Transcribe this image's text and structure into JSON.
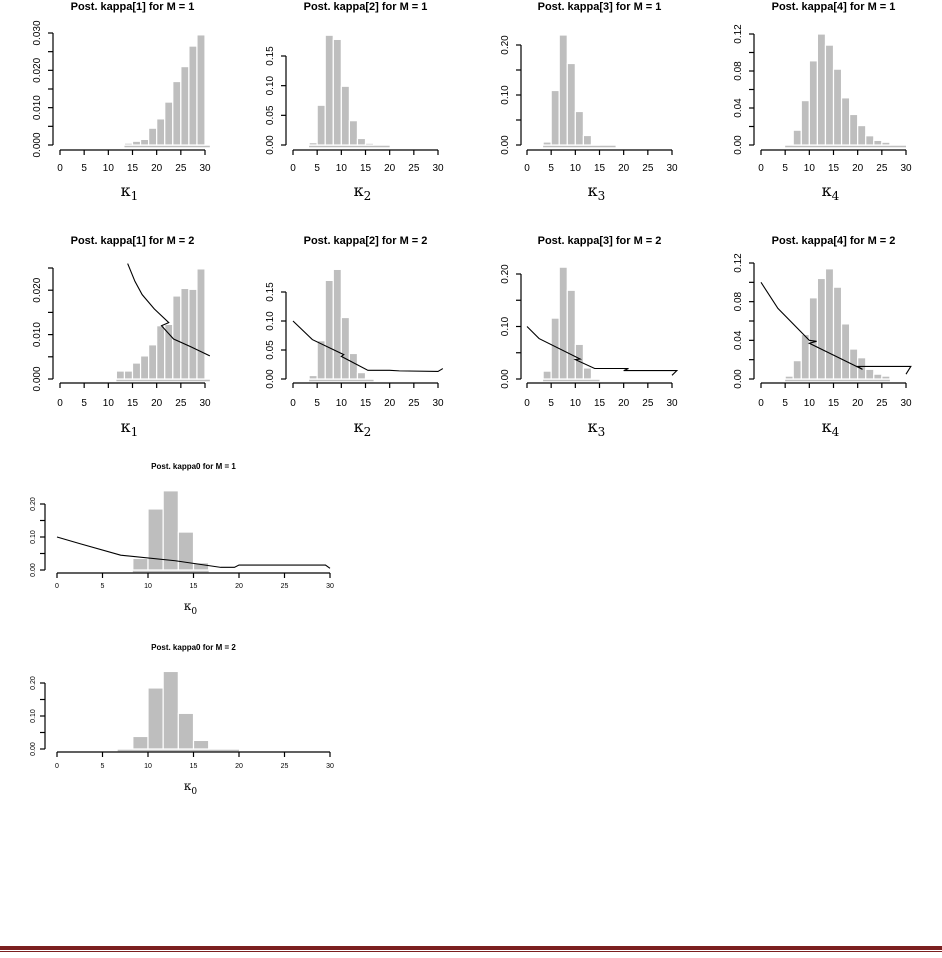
{
  "chart_data": [
    {
      "type": "bar",
      "title": "Post. kappa[1] for M = 1",
      "xlabel": "κ",
      "xlabel_sub": "1",
      "xlim": [
        0,
        30
      ],
      "ylim": [
        0,
        0.03
      ],
      "xticks": [
        "0",
        "5",
        "10",
        "15",
        "20",
        "25",
        "30"
      ],
      "yticks": [
        0,
        0.005,
        0.01,
        0.015,
        0.02,
        0.025,
        0.03
      ],
      "ytick_labels": [
        "0.000",
        "",
        "0.010",
        "",
        "0.020",
        "",
        "0.030"
      ],
      "bin_start": 13.333,
      "bin_width": 1.667,
      "values": [
        0.0005,
        0.001,
        0.0015,
        0.0045,
        0.007,
        0.0115,
        0.017,
        0.021,
        0.0265,
        0.0295
      ],
      "support": [
        13.333,
        31
      ],
      "prior": []
    },
    {
      "type": "bar",
      "title": "Post. kappa[2] for M = 1",
      "xlabel": "κ",
      "xlabel_sub": "2",
      "xlim": [
        0,
        30
      ],
      "ylim": [
        0,
        0.15
      ],
      "xticks": [
        "0",
        "5",
        "10",
        "15",
        "20",
        "25",
        "30"
      ],
      "yticks": [
        0,
        0.05,
        0.1,
        0.15
      ],
      "ytick_labels": [
        "0.00",
        "0.05",
        "0.10",
        "0.15"
      ],
      "bin_start": 3.333,
      "bin_width": 1.667,
      "values": [
        0.004,
        0.067,
        0.185,
        0.178,
        0.099,
        0.041,
        0.011,
        0.003
      ],
      "support": [
        3.333,
        20
      ],
      "prior": []
    },
    {
      "type": "bar",
      "title": "Post. kappa[3] for M = 1",
      "xlabel": "κ",
      "xlabel_sub": "3",
      "xlim": [
        0,
        30
      ],
      "ylim": [
        0,
        0.2
      ],
      "xticks": [
        "0",
        "5",
        "10",
        "15",
        "20",
        "25",
        "30"
      ],
      "yticks": [
        0,
        0.05,
        0.1,
        0.15,
        0.2
      ],
      "ytick_labels": [
        "0.00",
        "",
        "0.10",
        "",
        "0.20"
      ],
      "bin_start": 3.333,
      "bin_width": 1.667,
      "values": [
        0.006,
        0.109,
        0.22,
        0.163,
        0.067,
        0.019,
        0.002
      ],
      "support": [
        3.333,
        18.333
      ],
      "prior": []
    },
    {
      "type": "bar",
      "title": "Post. kappa[4] for M = 1",
      "xlabel": "κ",
      "xlabel_sub": "4",
      "xlim": [
        0,
        30
      ],
      "ylim": [
        0,
        0.12
      ],
      "xticks": [
        "0",
        "5",
        "10",
        "15",
        "20",
        "25",
        "30"
      ],
      "yticks": [
        0,
        0.02,
        0.04,
        0.06,
        0.08,
        0.1,
        0.12
      ],
      "ytick_labels": [
        "0.00",
        "",
        "0.04",
        "",
        "0.08",
        "",
        "0.12"
      ],
      "bin_start": 6.667,
      "bin_width": 1.667,
      "values": [
        0.016,
        0.048,
        0.091,
        0.12,
        0.108,
        0.082,
        0.051,
        0.033,
        0.021,
        0.01,
        0.005,
        0.003
      ],
      "support": [
        5,
        30
      ],
      "prior": []
    },
    {
      "type": "bar",
      "title": "Post. kappa[1] for M = 2",
      "xlabel": "κ",
      "xlabel_sub": "1",
      "xlim": [
        0,
        30
      ],
      "ylim": [
        0,
        0.025
      ],
      "xticks": [
        "0",
        "5",
        "10",
        "15",
        "20",
        "25",
        "30"
      ],
      "yticks": [
        0,
        0.005,
        0.01,
        0.015,
        0.02,
        0.025
      ],
      "ytick_labels": [
        "0.000",
        "",
        "0.010",
        "",
        "0.020",
        ""
      ],
      "bin_start": 11.667,
      "bin_width": 1.667,
      "values": [
        0.0018,
        0.0018,
        0.0036,
        0.0052,
        0.0077,
        0.012,
        0.0123,
        0.0187,
        0.0204,
        0.0202,
        0.0248
      ],
      "support": [
        11.667,
        31
      ],
      "prior": [
        [
          14,
          0.026
        ],
        [
          15.5,
          0.022
        ],
        [
          17,
          0.019
        ],
        [
          19.5,
          0.0158
        ],
        [
          22.5,
          0.0127
        ],
        [
          21,
          0.012
        ],
        [
          23.5,
          0.009
        ],
        [
          27,
          0.0073
        ],
        [
          31,
          0.0052
        ]
      ]
    },
    {
      "type": "bar",
      "title": "Post. kappa[2] for M = 2",
      "xlabel": "κ",
      "xlabel_sub": "2",
      "xlim": [
        0,
        30
      ],
      "ylim": [
        0,
        0.15
      ],
      "xticks": [
        "0",
        "5",
        "10",
        "15",
        "20",
        "25",
        "30"
      ],
      "yticks": [
        0,
        0.05,
        0.1,
        0.15
      ],
      "ytick_labels": [
        "0.00",
        "0.05",
        "0.10",
        "0.15"
      ],
      "bin_start": 3.333,
      "bin_width": 1.667,
      "values": [
        0.006,
        0.066,
        0.17,
        0.189,
        0.106,
        0.044,
        0.011,
        0.002
      ],
      "support": [
        3.333,
        16.667
      ],
      "prior": [
        [
          0,
          0.1
        ],
        [
          4,
          0.068
        ],
        [
          10.5,
          0.042
        ],
        [
          10,
          0.039
        ],
        [
          15.5,
          0.015
        ],
        [
          20,
          0.015
        ],
        [
          22,
          0.014
        ],
        [
          30,
          0.013
        ],
        [
          31,
          0.018
        ]
      ]
    },
    {
      "type": "bar",
      "title": "Post. kappa[3] for M = 2",
      "xlabel": "κ",
      "xlabel_sub": "3",
      "xlim": [
        0,
        30
      ],
      "ylim": [
        0,
        0.2
      ],
      "xticks": [
        "0",
        "5",
        "10",
        "15",
        "20",
        "25",
        "30"
      ],
      "yticks": [
        0,
        0.05,
        0.1,
        0.15,
        0.2
      ],
      "ytick_labels": [
        "0.00",
        "",
        "0.10",
        "",
        "0.20"
      ],
      "bin_start": 3.333,
      "bin_width": 1.667,
      "values": [
        0.015,
        0.116,
        0.213,
        0.169,
        0.066,
        0.021,
        0.002
      ],
      "support": [
        3.333,
        15
      ],
      "prior": [
        [
          0,
          0.1
        ],
        [
          2.5,
          0.077
        ],
        [
          11,
          0.038
        ],
        [
          10,
          0.037
        ],
        [
          14,
          0.02
        ],
        [
          21,
          0.02
        ],
        [
          20,
          0.016
        ],
        [
          31,
          0.016
        ],
        [
          30,
          0.007
        ]
      ]
    },
    {
      "type": "bar",
      "title": "Post. kappa[4] for M = 2",
      "xlabel": "κ",
      "xlabel_sub": "4",
      "xlim": [
        0,
        30
      ],
      "ylim": [
        0,
        0.12
      ],
      "xticks": [
        "0",
        "5",
        "10",
        "15",
        "20",
        "25",
        "30"
      ],
      "yticks": [
        0,
        0.02,
        0.04,
        0.06,
        0.08,
        0.1,
        0.12
      ],
      "ytick_labels": [
        "0.00",
        "",
        "0.04",
        "",
        "0.08",
        "",
        "0.12"
      ],
      "bin_start": 5,
      "bin_width": 1.667,
      "values": [
        0.003,
        0.019,
        0.046,
        0.084,
        0.104,
        0.114,
        0.095,
        0.057,
        0.031,
        0.022,
        0.01,
        0.005,
        0.003
      ],
      "support": [
        5,
        26.667
      ],
      "prior": [
        [
          0,
          0.1
        ],
        [
          3.5,
          0.073
        ],
        [
          10,
          0.04
        ],
        [
          11.5,
          0.039
        ],
        [
          10,
          0.037
        ],
        [
          21,
          0.01
        ],
        [
          20,
          0.013
        ],
        [
          31,
          0.013
        ],
        [
          30,
          0.005
        ]
      ]
    },
    {
      "type": "bar",
      "title": "Post. kappa0 for M = 1",
      "xlabel": "κ",
      "xlabel_sub": "0",
      "xlim": [
        0,
        30
      ],
      "ylim": [
        0,
        0.2
      ],
      "xticks": [
        "0",
        "5",
        "10",
        "15",
        "20",
        "25",
        "30"
      ],
      "yticks": [
        0,
        0.05,
        0.1,
        0.15,
        0.2
      ],
      "ytick_labels": [
        "0.00",
        "",
        "0.10",
        "",
        "0.20"
      ],
      "bin_start": 8.333,
      "bin_width": 1.667,
      "values": [
        0.035,
        0.185,
        0.24,
        0.115,
        0.022
      ],
      "support": [
        8.333,
        16.667
      ],
      "prior": [
        [
          0,
          0.1
        ],
        [
          2.5,
          0.08
        ],
        [
          7,
          0.045
        ],
        [
          13,
          0.028
        ],
        [
          18,
          0.008
        ],
        [
          19.5,
          0.008
        ],
        [
          20,
          0.015
        ],
        [
          29.5,
          0.015
        ],
        [
          30,
          0.005
        ]
      ]
    },
    {
      "type": "bar",
      "title": "Post. kappa0 for M = 2",
      "xlabel": "κ",
      "xlabel_sub": "0",
      "xlim": [
        0,
        30
      ],
      "ylim": [
        0,
        0.2
      ],
      "xticks": [
        "0",
        "5",
        "10",
        "15",
        "20",
        "25",
        "30"
      ],
      "yticks": [
        0,
        0.05,
        0.1,
        0.15,
        0.2
      ],
      "ytick_labels": [
        "0.00",
        "",
        "0.10",
        "",
        "0.20"
      ],
      "bin_start": 8.333,
      "bin_width": 1.667,
      "values": [
        0.038,
        0.185,
        0.235,
        0.108,
        0.026
      ],
      "support": [
        6.667,
        20
      ],
      "prior": []
    }
  ],
  "colors": {
    "bar": "#bebebe",
    "bar_border": "#ffffff",
    "line": "#000000",
    "footer_rule": "#7b2020"
  }
}
